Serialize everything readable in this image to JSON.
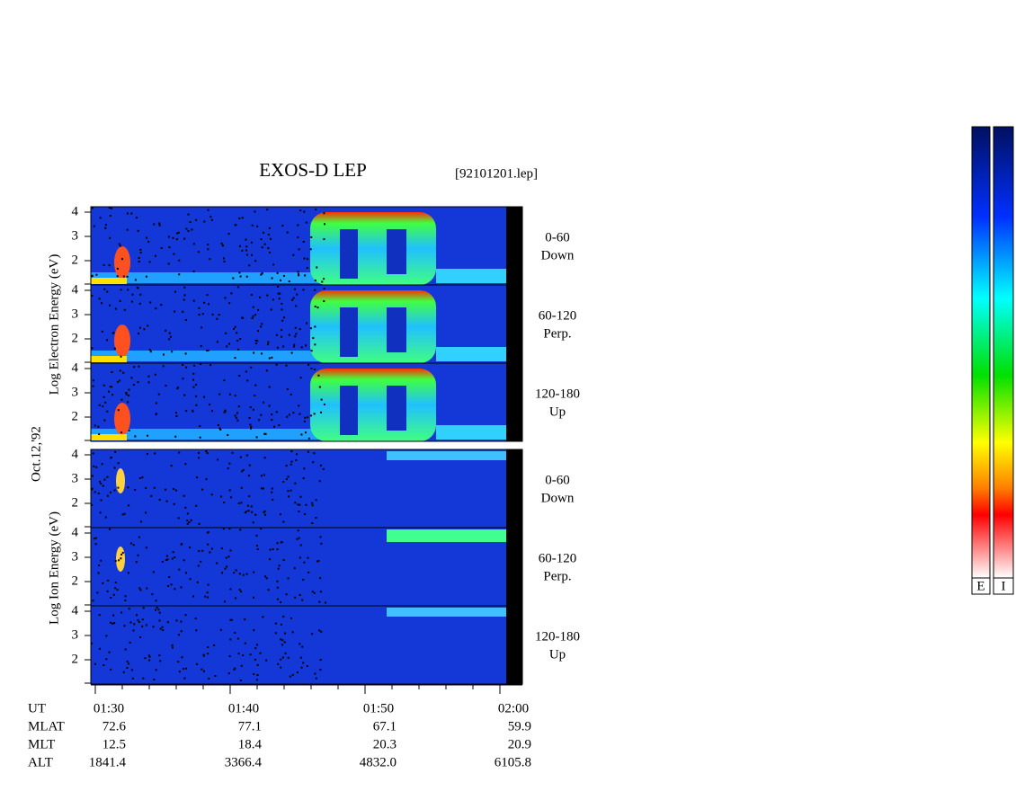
{
  "header": {
    "title": "EXOS-D LEP",
    "file": "[92101201.lep]"
  },
  "date": "Oct.12,'92",
  "electron": {
    "axis_label": "Log Electron Energy (eV)",
    "panels": [
      {
        "ticks": [
          "4",
          "3",
          "2"
        ],
        "label": [
          "0-60",
          "Down"
        ]
      },
      {
        "ticks": [
          "4",
          "3",
          "2"
        ],
        "label": [
          "60-120",
          "Perp."
        ]
      },
      {
        "ticks": [
          "4",
          "3",
          "2"
        ],
        "label": [
          "120-180",
          "Up"
        ]
      }
    ]
  },
  "ion": {
    "axis_label": "Log Ion Energy (eV)",
    "panels": [
      {
        "ticks": [
          "4",
          "3",
          "2"
        ],
        "label": [
          "0-60",
          "Down"
        ]
      },
      {
        "ticks": [
          "4",
          "3",
          "2"
        ],
        "label": [
          "60-120",
          "Perp."
        ]
      },
      {
        "ticks": [
          "4",
          "3",
          "2"
        ],
        "label": [
          "120-180",
          "Up"
        ]
      }
    ]
  },
  "orbit_table": {
    "rows": [
      [
        "UT",
        "01:30",
        "01:40",
        "01:50",
        "02:00"
      ],
      [
        "MLAT",
        "72.6",
        "77.1",
        "67.1",
        "59.9"
      ],
      [
        "MLT",
        "12.5",
        "18.4",
        "20.3",
        "20.9"
      ],
      [
        "ALT",
        "1841.4",
        "3366.4",
        "4832.0",
        "6105.8"
      ]
    ]
  },
  "colorbars": [
    "E",
    "I"
  ]
}
